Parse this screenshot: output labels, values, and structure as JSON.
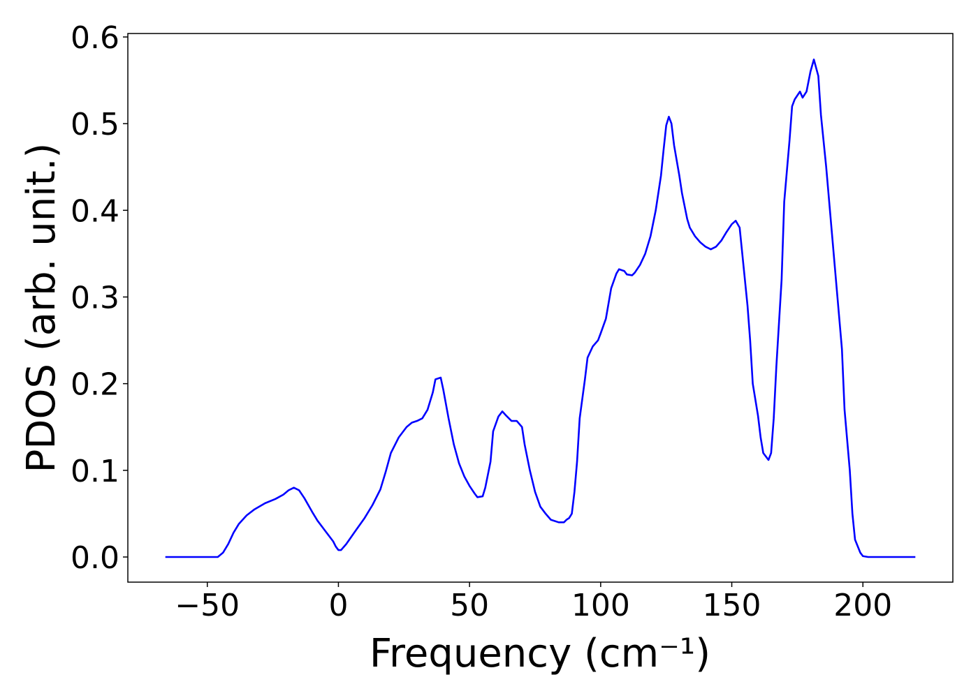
{
  "chart_data": {
    "type": "line",
    "xlabel": "Frequency (cm⁻¹)",
    "ylabel": "PDOS (arb. unit.)",
    "x": [
      -66,
      -46,
      -44,
      -42,
      -40,
      -38,
      -35,
      -32,
      -28,
      -24,
      -21,
      -19,
      -17,
      -15,
      -13,
      -10,
      -8,
      -5,
      -2,
      -1,
      0,
      1,
      3,
      6,
      10,
      13,
      16,
      18,
      20,
      23,
      26,
      28,
      30,
      32,
      34,
      36,
      37,
      39,
      40,
      42,
      44,
      46,
      48,
      50,
      52,
      53,
      55,
      56,
      58,
      59,
      61,
      62.5,
      64,
      66,
      68,
      70,
      71,
      73,
      75,
      77,
      79,
      81,
      84,
      86,
      87,
      88,
      89,
      90,
      91,
      92,
      94,
      95,
      97,
      99,
      100,
      102,
      104,
      106,
      107,
      109,
      110,
      112,
      113,
      115,
      117,
      119,
      121,
      123,
      124,
      125,
      126,
      127,
      128,
      130,
      131,
      133,
      134,
      136,
      138,
      140,
      142,
      144,
      146,
      148,
      150,
      151.5,
      153,
      154,
      156,
      157,
      158,
      160,
      161,
      162,
      164,
      165,
      166,
      167,
      169,
      170,
      172,
      173,
      174,
      176,
      177,
      178.5,
      180,
      181.3,
      183,
      184,
      186,
      188,
      190,
      192,
      193,
      195,
      196,
      197,
      199,
      200,
      202,
      220
    ],
    "series": [
      {
        "name": "PDOS",
        "color": "#0000ff",
        "values": [
          0,
          0,
          0.005,
          0.015,
          0.028,
          0.038,
          0.048,
          0.055,
          0.062,
          0.067,
          0.072,
          0.077,
          0.08,
          0.077,
          0.068,
          0.052,
          0.042,
          0.03,
          0.018,
          0.012,
          0.008,
          0.008,
          0.015,
          0.028,
          0.045,
          0.06,
          0.078,
          0.098,
          0.12,
          0.138,
          0.15,
          0.155,
          0.157,
          0.16,
          0.17,
          0.19,
          0.205,
          0.207,
          0.193,
          0.16,
          0.13,
          0.108,
          0.093,
          0.082,
          0.073,
          0.069,
          0.07,
          0.08,
          0.11,
          0.145,
          0.162,
          0.168,
          0.163,
          0.157,
          0.157,
          0.15,
          0.13,
          0.1,
          0.075,
          0.058,
          0.05,
          0.043,
          0.04,
          0.04,
          0.043,
          0.045,
          0.05,
          0.075,
          0.11,
          0.16,
          0.205,
          0.23,
          0.243,
          0.25,
          0.258,
          0.275,
          0.31,
          0.327,
          0.332,
          0.33,
          0.326,
          0.325,
          0.328,
          0.337,
          0.35,
          0.37,
          0.4,
          0.44,
          0.47,
          0.498,
          0.508,
          0.5,
          0.475,
          0.44,
          0.42,
          0.39,
          0.38,
          0.37,
          0.363,
          0.358,
          0.355,
          0.358,
          0.365,
          0.375,
          0.384,
          0.388,
          0.38,
          0.35,
          0.29,
          0.25,
          0.2,
          0.163,
          0.138,
          0.12,
          0.112,
          0.12,
          0.16,
          0.22,
          0.32,
          0.41,
          0.48,
          0.52,
          0.528,
          0.537,
          0.53,
          0.537,
          0.56,
          0.574,
          0.555,
          0.51,
          0.45,
          0.38,
          0.31,
          0.24,
          0.17,
          0.1,
          0.05,
          0.02,
          0.005,
          0.001,
          0,
          0
        ]
      }
    ],
    "xlim": [
      -80.3,
      234.3
    ],
    "ylim": [
      -0.029,
      0.604
    ],
    "xticks": [
      {
        "value": -50,
        "label": "−50"
      },
      0,
      50,
      100,
      150,
      200
    ],
    "yticks": [
      {
        "value": 0,
        "label": "0.0"
      },
      0.1,
      0.2,
      0.3,
      0.4,
      0.5,
      0.6
    ],
    "grid": false
  }
}
